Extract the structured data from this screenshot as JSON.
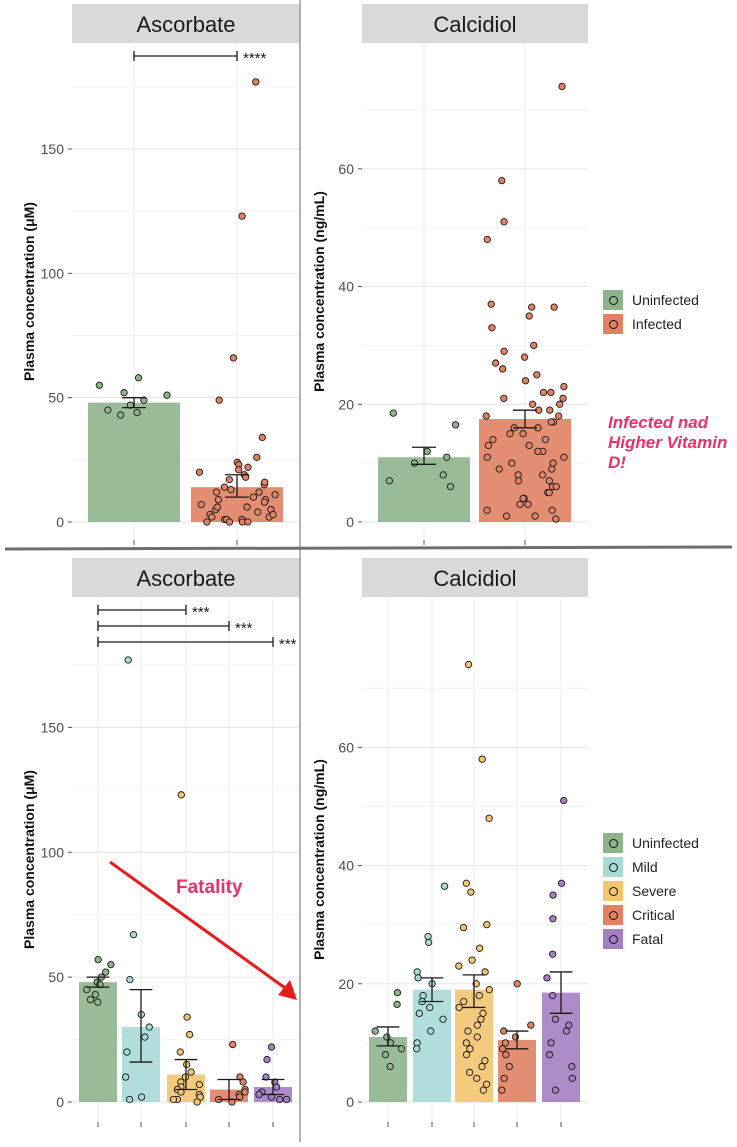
{
  "annotations": {
    "top_note": "Infected nad Higher Vitamin D!",
    "bottom_note": "Fatality"
  },
  "legend_top": [
    {
      "label": "Uninfected",
      "color": "#8fb48c"
    },
    {
      "label": "Infected",
      "color": "#e08263"
    }
  ],
  "legend_bottom": [
    {
      "label": "Uninfected",
      "color": "#8fb48c"
    },
    {
      "label": "Mild",
      "color": "#a8dad8"
    },
    {
      "label": "Severe",
      "color": "#f3c570"
    },
    {
      "label": "Critical",
      "color": "#e08263"
    },
    {
      "label": "Fatal",
      "color": "#a47fc2"
    }
  ],
  "chart_data": [
    {
      "id": "top-ascorbate",
      "type": "bar",
      "title": "Ascorbate",
      "ylabel": "Plasma concentration (μM)",
      "ylim": [
        0,
        187
      ],
      "yticks": [
        0,
        50,
        100,
        150
      ],
      "categories": [
        "Uninfected",
        "Infected"
      ],
      "values": [
        48,
        14
      ],
      "error": [
        [
          46,
          50
        ],
        [
          10,
          19
        ]
      ],
      "colors": [
        "#8fb48c",
        "#e08263"
      ],
      "points": [
        [
          51,
          55,
          58,
          52,
          47,
          49,
          45,
          43,
          44
        ],
        [
          177,
          123,
          66,
          49,
          34,
          26,
          24,
          23,
          21,
          20,
          19,
          18,
          17,
          15,
          14,
          13,
          12,
          11,
          10,
          9,
          8,
          7,
          6,
          5,
          5,
          4,
          3,
          2,
          2,
          1,
          1,
          1,
          0,
          0,
          0,
          0,
          3,
          6,
          9,
          12,
          16,
          22
        ]
      ],
      "significance": [
        {
          "from": 0,
          "to": 1,
          "label": "****"
        }
      ]
    },
    {
      "id": "top-calcidiol",
      "type": "bar",
      "title": "Calcidiol",
      "ylabel": "Plasma concentration (ng/mL)",
      "ylim": [
        0,
        79
      ],
      "yticks": [
        0,
        20,
        40,
        60
      ],
      "categories": [
        "Uninfected",
        "Infected"
      ],
      "values": [
        11,
        17.5
      ],
      "error": [
        [
          9.8,
          12.7
        ],
        [
          16,
          19
        ]
      ],
      "colors": [
        "#8fb48c",
        "#e08263"
      ],
      "points": [
        [
          18.5,
          16.5,
          12,
          11,
          10,
          8,
          7,
          6
        ],
        [
          74,
          58,
          51,
          48,
          37,
          36.5,
          36.5,
          35,
          33,
          30,
          29,
          28,
          27,
          26,
          25,
          24,
          23,
          22,
          22,
          21,
          21,
          20,
          20,
          19,
          19,
          18,
          18,
          17,
          17,
          16,
          16,
          15,
          15,
          14,
          14,
          13,
          13,
          12,
          12,
          11,
          11,
          10,
          10,
          9,
          9,
          8,
          8,
          7,
          7,
          6,
          6,
          5,
          5,
          4,
          4,
          3,
          3,
          2,
          2,
          1,
          1,
          0.5
        ]
      ],
      "significance": []
    },
    {
      "id": "bottom-ascorbate",
      "type": "bar",
      "title": "Ascorbate",
      "ylabel": "Plasma concentration (μM)",
      "ylim": [
        0,
        187
      ],
      "yticks": [
        0,
        50,
        100,
        150
      ],
      "categories": [
        "Uninfected",
        "Mild",
        "Severe",
        "Critical",
        "Fatal"
      ],
      "values": [
        48,
        30,
        11,
        5,
        6
      ],
      "error": [
        [
          46,
          50
        ],
        [
          16,
          45
        ],
        [
          5,
          17
        ],
        [
          1,
          9
        ],
        [
          3,
          9
        ]
      ],
      "colors": [
        "#8fb48c",
        "#a8dad8",
        "#f3c570",
        "#e08263",
        "#a47fc2"
      ],
      "points": [
        [
          57,
          55,
          52,
          50,
          48,
          47,
          45,
          43,
          41,
          40
        ],
        [
          177,
          67,
          49,
          35,
          30,
          26,
          20,
          10,
          2,
          1
        ],
        [
          123,
          34,
          27,
          20,
          15,
          12,
          10,
          8,
          7,
          6,
          5,
          4,
          3,
          2,
          1,
          1,
          0
        ],
        [
          23,
          10,
          8,
          5,
          4,
          3,
          2,
          1,
          0
        ],
        [
          22,
          17,
          10,
          8,
          6,
          4,
          3,
          2,
          1,
          1
        ]
      ],
      "significance": [
        {
          "from": 0,
          "to": 2,
          "label": "***"
        },
        {
          "from": 0,
          "to": 3,
          "label": "***"
        },
        {
          "from": 0,
          "to": 4,
          "label": "***"
        }
      ]
    },
    {
      "id": "bottom-calcidiol",
      "type": "bar",
      "title": "Calcidiol",
      "ylabel": "Plasma concentration (ng/mL)",
      "ylim": [
        0,
        79
      ],
      "yticks": [
        0,
        20,
        40,
        60
      ],
      "categories": [
        "Uninfected",
        "Mild",
        "Severe",
        "Critical",
        "Fatal"
      ],
      "values": [
        11,
        19,
        19,
        10.5,
        18.5
      ],
      "error": [
        [
          9.5,
          12.7
        ],
        [
          17,
          21
        ],
        [
          16,
          21.5
        ],
        [
          9,
          12
        ],
        [
          15,
          22
        ]
      ],
      "colors": [
        "#8fb48c",
        "#a8dad8",
        "#f3c570",
        "#e08263",
        "#a47fc2"
      ],
      "points": [
        [
          18.5,
          16.5,
          12,
          11,
          10,
          9,
          8,
          6
        ],
        [
          36.5,
          28,
          27,
          22,
          21,
          20,
          18,
          17,
          16,
          15,
          14,
          12,
          10,
          9
        ],
        [
          74,
          58,
          48,
          37,
          35.5,
          30,
          29.5,
          26,
          24,
          23,
          22,
          20,
          19,
          18,
          17,
          16,
          15,
          14,
          13,
          12,
          11,
          10,
          9,
          8,
          7,
          6,
          5,
          4,
          3,
          2
        ],
        [
          20,
          13,
          12,
          11,
          10,
          9,
          8,
          6,
          4,
          2
        ],
        [
          51,
          37,
          35,
          31,
          25,
          21,
          18,
          14,
          13,
          12,
          10,
          8,
          6,
          4,
          2
        ]
      ],
      "significance": []
    }
  ]
}
